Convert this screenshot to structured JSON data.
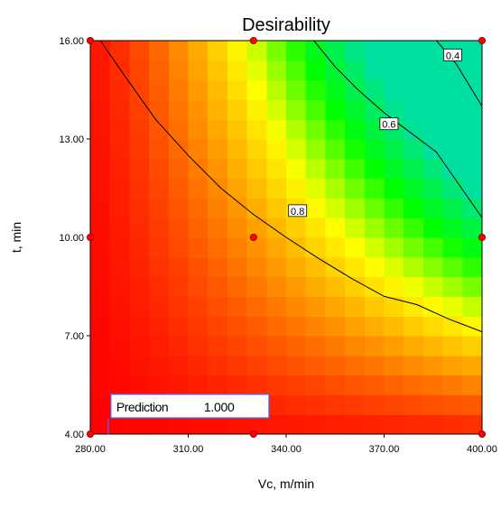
{
  "chart_data": {
    "type": "heatmap",
    "title": "Desirability",
    "xlabel": "Vc, m/min",
    "ylabel": "t, min",
    "xlim": [
      280,
      400
    ],
    "ylim": [
      4,
      16
    ],
    "x_ticks": [
      "280.00",
      "310.00",
      "340.00",
      "370.00",
      "400.00"
    ],
    "y_ticks": [
      "4.00",
      "7.00",
      "10.00",
      "13.00",
      "16.00"
    ],
    "grid": false,
    "colorscale": [
      "#ff0000",
      "#ff8000",
      "#ffff00",
      "#00ff00",
      "#00e0a0"
    ],
    "contours": [
      {
        "level": 0.8,
        "label": "0.8",
        "points": [
          [
            283.1,
            16
          ],
          [
            290,
            15
          ],
          [
            300,
            13.6
          ],
          [
            310,
            12.5
          ],
          [
            320,
            11.5
          ],
          [
            330,
            10.7
          ],
          [
            340,
            10.0
          ],
          [
            350,
            9.35
          ],
          [
            360,
            8.75
          ],
          [
            370,
            8.2
          ],
          [
            380,
            7.95
          ],
          [
            390,
            7.5
          ],
          [
            400,
            7.12
          ]
        ]
      },
      {
        "level": 0.6,
        "label": "0.6",
        "points": [
          [
            348.5,
            16
          ],
          [
            355,
            15.2
          ],
          [
            362,
            14.5
          ],
          [
            370,
            13.8
          ],
          [
            378,
            13.2
          ],
          [
            386,
            12.6
          ],
          [
            393,
            11.6
          ],
          [
            400,
            10.6
          ]
        ]
      },
      {
        "level": 0.4,
        "label": "0.4",
        "points": [
          [
            386,
            16
          ],
          [
            392,
            15.3
          ],
          [
            400,
            14.0
          ]
        ]
      }
    ],
    "design_points": [
      {
        "x": 280,
        "y": 16
      },
      {
        "x": 330,
        "y": 16
      },
      {
        "x": 400,
        "y": 16
      },
      {
        "x": 280,
        "y": 10
      },
      {
        "x": 330,
        "y": 10
      },
      {
        "x": 400,
        "y": 10
      },
      {
        "x": 280,
        "y": 4
      },
      {
        "x": 330,
        "y": 4
      },
      {
        "x": 400,
        "y": 4
      }
    ],
    "prediction": {
      "label": "Prediction",
      "value": "1.000",
      "x": 285.5,
      "y": 4
    }
  }
}
